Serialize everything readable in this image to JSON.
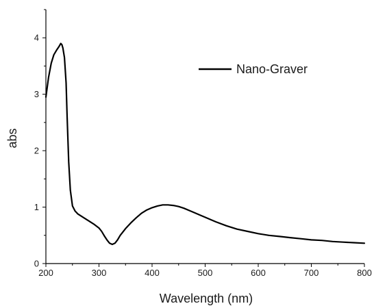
{
  "chart_data": {
    "type": "line",
    "xlabel": "Wavelength (nm)",
    "ylabel": "abs",
    "xlim": [
      200,
      800
    ],
    "ylim": [
      0,
      4.5
    ],
    "x_ticks": [
      200,
      300,
      400,
      500,
      600,
      700,
      800
    ],
    "y_ticks": [
      0,
      1,
      2,
      3,
      4
    ],
    "grid": false,
    "legend_position": "top-right",
    "series": [
      {
        "name": "Nano-Graver",
        "color": "#000000",
        "x": [
          200,
          205,
          210,
          215,
          220,
          225,
          228,
          230,
          232,
          235,
          238,
          240,
          243,
          246,
          250,
          255,
          260,
          270,
          280,
          290,
          300,
          305,
          310,
          315,
          320,
          325,
          330,
          335,
          340,
          350,
          360,
          370,
          380,
          390,
          400,
          410,
          420,
          430,
          440,
          450,
          460,
          470,
          480,
          490,
          500,
          520,
          540,
          560,
          580,
          600,
          620,
          640,
          660,
          680,
          700,
          720,
          740,
          760,
          780,
          800
        ],
        "values": [
          2.95,
          3.3,
          3.55,
          3.7,
          3.78,
          3.85,
          3.9,
          3.88,
          3.82,
          3.65,
          3.2,
          2.6,
          1.8,
          1.3,
          1.02,
          0.93,
          0.88,
          0.82,
          0.76,
          0.7,
          0.63,
          0.57,
          0.49,
          0.42,
          0.36,
          0.34,
          0.36,
          0.42,
          0.5,
          0.62,
          0.72,
          0.81,
          0.89,
          0.95,
          0.99,
          1.02,
          1.04,
          1.04,
          1.03,
          1.01,
          0.98,
          0.94,
          0.9,
          0.86,
          0.82,
          0.74,
          0.67,
          0.61,
          0.57,
          0.53,
          0.5,
          0.48,
          0.46,
          0.44,
          0.42,
          0.41,
          0.39,
          0.38,
          0.37,
          0.36
        ]
      }
    ]
  }
}
